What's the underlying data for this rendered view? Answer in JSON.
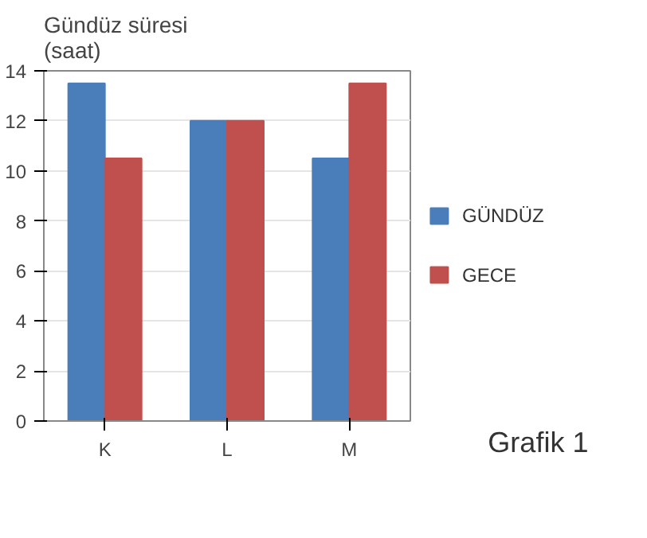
{
  "chart_data": {
    "type": "bar",
    "ylabel": "Gündüz süresi\n(saat)",
    "categories": [
      "K",
      "L",
      "M"
    ],
    "series": [
      {
        "name": "GÜNDÜZ",
        "color": "#4a7ebb",
        "values": [
          13.5,
          12,
          10.5
        ]
      },
      {
        "name": "GECE",
        "color": "#c0504d",
        "values": [
          10.5,
          12,
          13.5
        ]
      }
    ],
    "ylim": [
      0,
      14
    ],
    "yticks": [
      0,
      2,
      4,
      6,
      8,
      10,
      12,
      14
    ],
    "grid": "y",
    "legend": "right",
    "annotations": [
      "Grafik 1"
    ]
  }
}
